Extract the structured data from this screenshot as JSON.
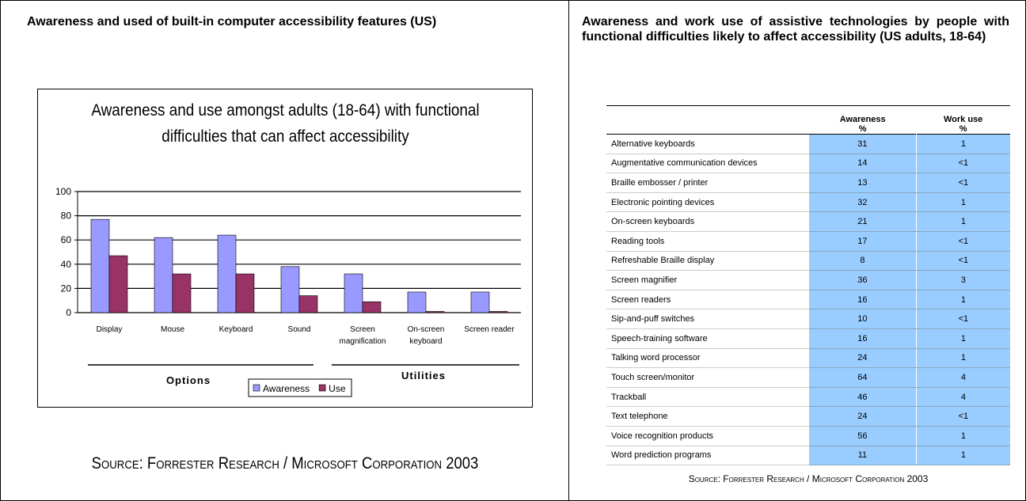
{
  "left_panel": {
    "heading": "Awareness and used of built-in computer accessibility features (US)",
    "source": "Source: Forrester Research / Microsoft Corporation 2003"
  },
  "chart_data": {
    "type": "bar",
    "title": "Awareness and use amongst adults (18-64) with functional difficulties that can affect accessibility",
    "categories": [
      "Display",
      "Mouse",
      "Keyboard",
      "Sound",
      "Screen magnification",
      "On-screen keyboard",
      "Screen reader"
    ],
    "series": [
      {
        "name": "Awareness",
        "color": "#9999ff",
        "values": [
          77,
          62,
          64,
          38,
          32,
          17,
          17
        ]
      },
      {
        "name": "Use",
        "color": "#993366",
        "values": [
          47,
          32,
          32,
          14,
          9,
          1,
          1
        ]
      }
    ],
    "annotations": [
      "Options",
      "Utilities"
    ],
    "ylim": [
      0,
      100
    ],
    "yticks": [
      0,
      20,
      40,
      60,
      80,
      100
    ],
    "grid": true,
    "legend": "bottom"
  },
  "right_panel": {
    "heading": "Awareness and work use of assistive technologies by people with functional difficulties likely to affect accessibility (US adults, 18-64)",
    "table": {
      "columns": [
        {
          "name": "Awareness",
          "unit": "%"
        },
        {
          "name": "Work use",
          "unit": "%"
        }
      ],
      "rows": [
        [
          "Alternative keyboards",
          "31",
          "1"
        ],
        [
          "Augmentative communication devices",
          "14",
          "<1"
        ],
        [
          "Braille embosser / printer",
          "13",
          "<1"
        ],
        [
          "Electronic pointing devices",
          "32",
          "1"
        ],
        [
          "On-screen keyboards",
          "21",
          "1"
        ],
        [
          "Reading tools",
          "17",
          "<1"
        ],
        [
          "Refreshable Braille display",
          "8",
          "<1"
        ],
        [
          "Screen magnifier",
          "36",
          "3"
        ],
        [
          "Screen readers",
          "16",
          "1"
        ],
        [
          "Sip-and-puff switches",
          "10",
          "<1"
        ],
        [
          "Speech-training software",
          "16",
          "1"
        ],
        [
          "Talking word processor",
          "24",
          "1"
        ],
        [
          "Touch screen/monitor",
          "64",
          "4"
        ],
        [
          "Trackball",
          "46",
          "4"
        ],
        [
          "Text telephone",
          "24",
          "<1"
        ],
        [
          "Voice recognition products",
          "56",
          "1"
        ],
        [
          "Word prediction programs",
          "11",
          "1"
        ]
      ]
    },
    "source": "Source: Forrester Research / Microsoft Corporation 2003"
  }
}
